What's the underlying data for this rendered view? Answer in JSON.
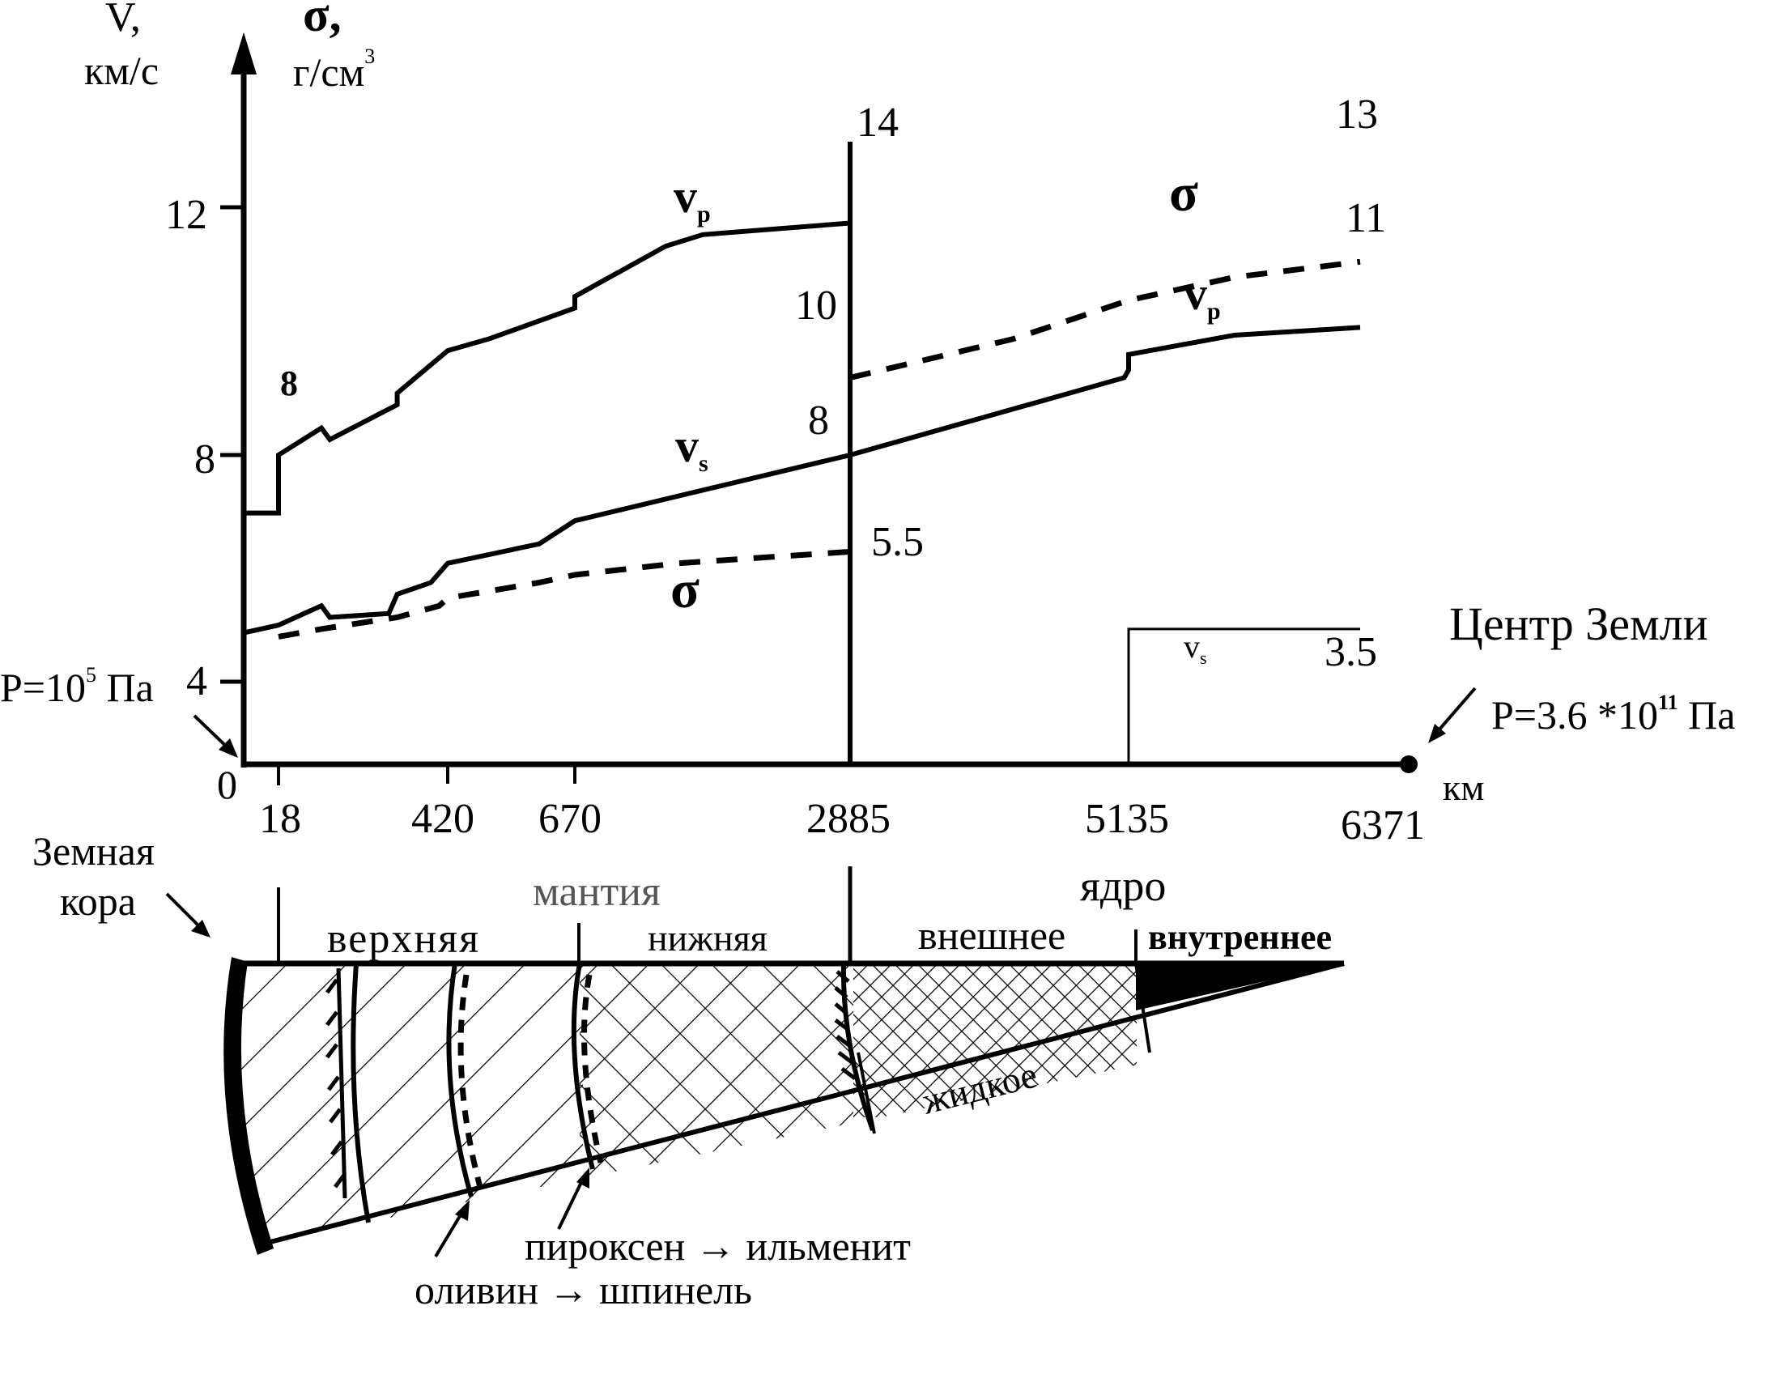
{
  "axes": {
    "y_label_v": "V,",
    "y_unit_v": "км/с",
    "y_label_sigma": "σ,",
    "y_unit_sigma_base": "г/см",
    "y_unit_sigma_exp": "3",
    "x_unit": "км",
    "origin": "0",
    "y_ticks": [
      "4",
      "8",
      "12"
    ],
    "x_ticks": [
      "18",
      "420",
      "670",
      "2885",
      "5135",
      "6371"
    ]
  },
  "pressure": {
    "surface_base": "P=10",
    "surface_exp": "5",
    "surface_unit": " Па",
    "center_title": "Центр Земли",
    "center_base": "P=3.6 *10",
    "center_exp": "11",
    "center_unit": " Па"
  },
  "annotations": {
    "vp_mantle_label": "v",
    "vp_mantle_sub": "p",
    "vp_mantle_start": "8",
    "vp_mantle_end": "14",
    "vs_mantle_label": "v",
    "vs_mantle_sub": "s",
    "vs_mantle_end": "8",
    "sigma_mantle_label": "σ",
    "sigma_mantle_end": "5.5",
    "sigma_core_label": "σ",
    "sigma_core_start": "10",
    "sigma_core_end": "13",
    "vp_core_label": "v",
    "vp_core_sub": "p",
    "vp_core_end": "11",
    "vs_core_label": "v",
    "vs_core_sub": "s",
    "vs_core_value": "3.5"
  },
  "section": {
    "crust_line1": "Земная",
    "crust_line2": "кора",
    "mantle": "мантия",
    "core": "ядро",
    "upper": "верхняя",
    "lower": "нижняя",
    "outer": "внешнее",
    "inner": "внутреннее",
    "liquid": "жидкое",
    "transition_pyroxene": "пироксен → ильменит",
    "transition_olivine": "оливин → шпинель"
  },
  "colors": {
    "ink": "#000000",
    "mantle_label": "#555555",
    "background": "#ffffff"
  },
  "chart_data": {
    "type": "line",
    "xlabel": "км",
    "ylabel": "V, км/с; σ, г/см3",
    "x_ticks": [
      0,
      18,
      420,
      670,
      2885,
      5135,
      6371
    ],
    "x_scale": "non-uniform (piecewise)",
    "yticks": [
      4,
      8,
      12
    ],
    "grid": false,
    "legend": "inline labels",
    "series": [
      {
        "name": "vp",
        "style": "solid",
        "x": [
          0,
          18,
          18,
          120,
          140,
          300,
          300,
          420,
          500,
          670,
          670,
          1400,
          1700,
          2885
        ],
        "y": [
          6.5,
          6.5,
          8.0,
          8.7,
          8.4,
          9.3,
          9.6,
          10.7,
          11.0,
          11.8,
          12.1,
          13.4,
          13.7,
          14.0
        ]
      },
      {
        "name": "vs",
        "style": "solid",
        "x": [
          0,
          18,
          120,
          140,
          280,
          300,
          380,
          420,
          600,
          670,
          2885
        ],
        "y": [
          3.4,
          3.6,
          4.1,
          3.8,
          3.9,
          4.4,
          4.7,
          5.2,
          5.7,
          6.3,
          8.0
        ]
      },
      {
        "name": "σ",
        "style": "dashed",
        "x": [
          18,
          120,
          300,
          400,
          420,
          600,
          670,
          1500,
          2885
        ],
        "y": [
          3.3,
          3.5,
          3.8,
          4.1,
          4.3,
          4.7,
          4.9,
          5.2,
          5.5
        ]
      },
      {
        "name": "σ",
        "style": "dashed",
        "x": [
          2885,
          4200,
          5135,
          5700,
          6371
        ],
        "y": [
          10.0,
          11.0,
          12.0,
          12.6,
          13.0
        ]
      },
      {
        "name": "vp",
        "style": "solid",
        "x": [
          2885,
          5100,
          5135,
          5135,
          5700,
          6371
        ],
        "y": [
          8.0,
          10.0,
          10.2,
          10.6,
          11.1,
          11.3
        ]
      },
      {
        "name": "vs",
        "style": "solid",
        "x": [
          5135,
          5135,
          6371
        ],
        "y": [
          0,
          3.5,
          3.5
        ]
      }
    ]
  }
}
